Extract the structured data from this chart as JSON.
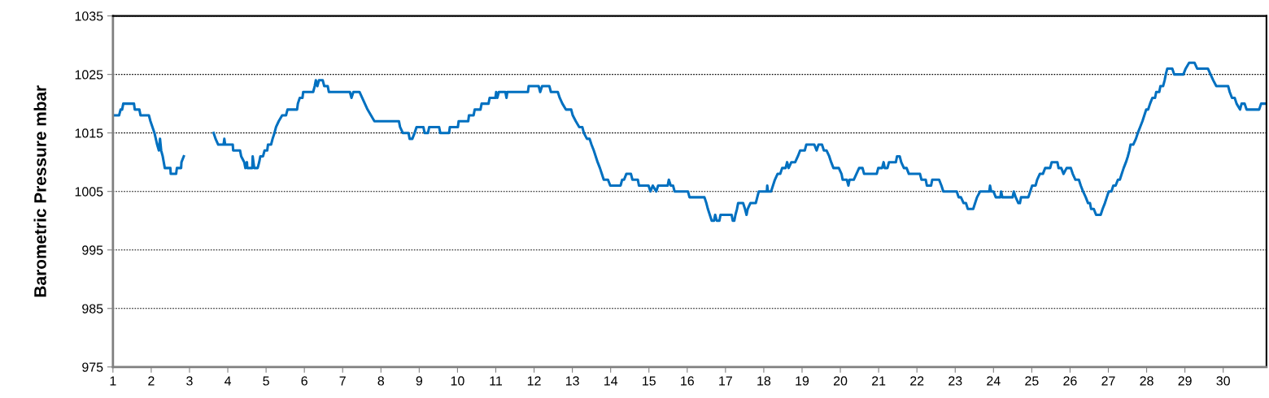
{
  "chart_data": {
    "type": "line",
    "ylabel": "Barometric Pressure mbar",
    "xlim": [
      1,
      31.13
    ],
    "xticks": [
      1,
      2,
      3,
      4,
      5,
      6,
      7,
      8,
      9,
      10,
      11,
      12,
      13,
      14,
      15,
      16,
      17,
      18,
      19,
      20,
      21,
      22,
      23,
      24,
      25,
      26,
      27,
      28,
      29,
      30
    ],
    "ylim": [
      975,
      1035
    ],
    "yticks": [
      975,
      985,
      995,
      1005,
      1015,
      1025,
      1035
    ],
    "grid": "y",
    "series": [
      {
        "color": "#0070c0",
        "x": [
          1.0,
          1.16,
          1.2,
          1.24,
          1.27,
          1.55,
          1.57,
          1.69,
          1.72,
          1.94,
          1.98,
          2.085,
          2.155,
          2.2,
          2.23,
          2.26,
          2.3,
          2.355,
          2.5,
          2.51,
          2.65,
          2.67,
          2.78,
          2.79,
          2.85,
          3.2,
          3.63,
          3.68,
          3.75,
          3.89,
          3.91,
          3.93,
          4.13,
          4.14,
          4.32,
          4.35,
          4.43,
          4.46,
          4.5,
          4.51,
          4.64,
          4.65,
          4.69,
          4.78,
          4.82,
          4.85,
          4.92,
          4.96,
          5.03,
          5.05,
          5.13,
          5.17,
          5.22,
          5.26,
          5.33,
          5.42,
          5.52,
          5.56,
          5.81,
          5.83,
          5.88,
          5.95,
          5.97,
          6.23,
          6.27,
          6.3,
          6.34,
          6.38,
          6.48,
          6.52,
          6.61,
          6.64,
          7.19,
          7.23,
          7.28,
          7.44,
          7.51,
          7.58,
          7.65,
          7.74,
          7.83,
          8.47,
          8.5,
          8.57,
          8.72,
          8.75,
          8.82,
          8.88,
          8.93,
          9.11,
          9.14,
          9.23,
          9.26,
          9.52,
          9.55,
          9.78,
          9.8,
          10.01,
          10.03,
          10.28,
          10.3,
          10.42,
          10.45,
          10.6,
          10.63,
          10.81,
          10.84,
          10.99,
          11.01,
          11.04,
          11.08,
          11.25,
          11.28,
          11.3,
          11.84,
          11.86,
          12.12,
          12.16,
          12.21,
          12.4,
          12.44,
          12.62,
          12.67,
          12.74,
          12.83,
          12.97,
          13.01,
          13.09,
          13.18,
          13.26,
          13.3,
          13.38,
          13.45,
          13.5,
          13.56,
          13.61,
          13.66,
          13.72,
          13.77,
          13.82,
          13.93,
          13.99,
          14.26,
          14.3,
          14.35,
          14.41,
          14.53,
          14.57,
          14.71,
          14.74,
          14.99,
          15.04,
          15.1,
          15.19,
          15.24,
          15.49,
          15.52,
          15.57,
          15.63,
          15.67,
          16.02,
          16.06,
          16.45,
          16.5,
          16.54,
          16.59,
          16.64,
          16.7,
          16.73,
          16.77,
          16.84,
          16.87,
          17.16,
          17.19,
          17.23,
          17.26,
          17.3,
          17.33,
          17.46,
          17.51,
          17.55,
          17.58,
          17.65,
          17.79,
          17.83,
          17.87,
          18.08,
          18.09,
          18.11,
          18.19,
          18.24,
          18.29,
          18.36,
          18.43,
          18.48,
          18.57,
          18.61,
          18.65,
          18.72,
          18.82,
          18.89,
          18.95,
          19.07,
          19.11,
          19.32,
          19.38,
          19.43,
          19.52,
          19.57,
          19.64,
          19.71,
          19.76,
          19.82,
          19.96,
          20.03,
          20.06,
          20.17,
          20.21,
          20.24,
          20.35,
          20.42,
          20.49,
          20.58,
          20.62,
          20.95,
          20.99,
          21.09,
          21.13,
          21.16,
          21.23,
          21.27,
          21.45,
          21.48,
          21.55,
          21.59,
          21.66,
          21.73,
          21.79,
          22.08,
          22.12,
          22.23,
          22.26,
          22.37,
          22.4,
          22.58,
          22.64,
          22.69,
          23.04,
          23.09,
          23.15,
          23.22,
          23.28,
          23.33,
          23.47,
          23.52,
          23.57,
          23.65,
          23.89,
          23.91,
          23.94,
          24.0,
          24.06,
          24.18,
          24.2,
          24.23,
          24.5,
          24.53,
          24.58,
          24.65,
          24.69,
          24.72,
          24.91,
          24.96,
          25.01,
          25.1,
          25.14,
          25.21,
          25.29,
          25.35,
          25.48,
          25.52,
          25.67,
          25.7,
          25.77,
          25.83,
          25.91,
          26.02,
          26.07,
          26.14,
          26.23,
          26.28,
          26.34,
          26.41,
          26.47,
          26.52,
          26.55,
          26.62,
          26.68,
          26.8,
          26.85,
          26.91,
          26.96,
          27.01,
          27.08,
          27.13,
          27.19,
          27.25,
          27.3,
          27.35,
          27.4,
          27.46,
          27.51,
          27.55,
          27.58,
          27.65,
          27.72,
          27.77,
          27.83,
          27.89,
          27.94,
          27.99,
          28.04,
          28.09,
          28.15,
          28.22,
          28.25,
          28.33,
          28.36,
          28.43,
          28.47,
          28.5,
          28.54,
          28.67,
          28.72,
          28.96,
          29.02,
          29.11,
          29.25,
          29.32,
          29.6,
          29.67,
          29.74,
          29.82,
          30.13,
          30.17,
          30.23,
          30.3,
          30.35,
          30.44,
          30.48,
          30.56,
          30.61,
          30.94,
          30.99,
          31.13
        ],
        "values": [
          1018,
          1018,
          1019,
          1019,
          1020,
          1020,
          1019,
          1019,
          1018,
          1018,
          1017,
          1015,
          1013,
          1012,
          1014,
          1012,
          1011,
          1009,
          1009,
          1008,
          1008,
          1009,
          1009,
          1010,
          1011,
          null,
          1015,
          1014,
          1013,
          1013,
          1014,
          1013,
          1013,
          1012,
          1012,
          1011,
          1010,
          1009,
          1010,
          1009,
          1009,
          1011,
          1009,
          1009,
          1010,
          1011,
          1011,
          1012,
          1012,
          1013,
          1013,
          1014,
          1015,
          1016,
          1017,
          1018,
          1018,
          1019,
          1019,
          1020,
          1021,
          1021,
          1022,
          1022,
          1023,
          1024,
          1023,
          1024,
          1024,
          1023,
          1023,
          1022,
          1022,
          1021,
          1022,
          1022,
          1021,
          1020,
          1019,
          1018,
          1017,
          1017,
          1016,
          1015,
          1015,
          1014,
          1014,
          1015,
          1016,
          1016,
          1015,
          1015,
          1016,
          1016,
          1015,
          1015,
          1016,
          1016,
          1017,
          1017,
          1018,
          1018,
          1019,
          1019,
          1020,
          1020,
          1021,
          1021,
          1022,
          1021,
          1022,
          1022,
          1021,
          1022,
          1022,
          1023,
          1023,
          1022,
          1023,
          1023,
          1022,
          1022,
          1021,
          1020,
          1019,
          1019,
          1018,
          1017,
          1016,
          1016,
          1015,
          1014,
          1014,
          1013,
          1012,
          1011,
          1010,
          1009,
          1008,
          1007,
          1007,
          1006,
          1006,
          1007,
          1007,
          1008,
          1008,
          1007,
          1007,
          1006,
          1006,
          1005,
          1006,
          1005,
          1006,
          1006,
          1007,
          1006,
          1006,
          1005,
          1005,
          1004,
          1004,
          1003,
          1002,
          1001,
          1000,
          1000,
          1001,
          1000,
          1000,
          1001,
          1001,
          1000,
          1000,
          1001,
          1002,
          1003,
          1003,
          1002,
          1001,
          1002,
          1003,
          1003,
          1004,
          1005,
          1005,
          1006,
          1005,
          1005,
          1006,
          1007,
          1008,
          1008,
          1009,
          1009,
          1010,
          1009,
          1010,
          1010,
          1011,
          1012,
          1012,
          1013,
          1013,
          1012,
          1013,
          1013,
          1012,
          1012,
          1011,
          1010,
          1009,
          1009,
          1008,
          1007,
          1007,
          1006,
          1007,
          1007,
          1008,
          1009,
          1009,
          1008,
          1008,
          1009,
          1009,
          1010,
          1009,
          1009,
          1010,
          1010,
          1011,
          1011,
          1010,
          1009,
          1009,
          1008,
          1008,
          1007,
          1007,
          1006,
          1006,
          1007,
          1007,
          1006,
          1005,
          1005,
          1004,
          1004,
          1003,
          1003,
          1002,
          1002,
          1003,
          1004,
          1005,
          1005,
          1006,
          1005,
          1005,
          1004,
          1004,
          1005,
          1004,
          1004,
          1005,
          1004,
          1003,
          1003,
          1004,
          1004,
          1005,
          1006,
          1006,
          1007,
          1008,
          1008,
          1009,
          1009,
          1010,
          1010,
          1009,
          1009,
          1008,
          1009,
          1009,
          1008,
          1007,
          1007,
          1006,
          1005,
          1004,
          1003,
          1003,
          1002,
          1002,
          1001,
          1001,
          1002,
          1003,
          1004,
          1005,
          1005,
          1006,
          1006,
          1007,
          1007,
          1008,
          1009,
          1010,
          1011,
          1012,
          1013,
          1013,
          1014,
          1015,
          1016,
          1017,
          1018,
          1019,
          1019,
          1020,
          1021,
          1021,
          1022,
          1022,
          1023,
          1023,
          1024,
          1025,
          1026,
          1026,
          1025,
          1025,
          1026,
          1027,
          1027,
          1026,
          1026,
          1025,
          1024,
          1023,
          1023,
          1022,
          1021,
          1021,
          1020,
          1019,
          1020,
          1020,
          1019,
          1019,
          1020,
          1020
        ]
      }
    ]
  }
}
